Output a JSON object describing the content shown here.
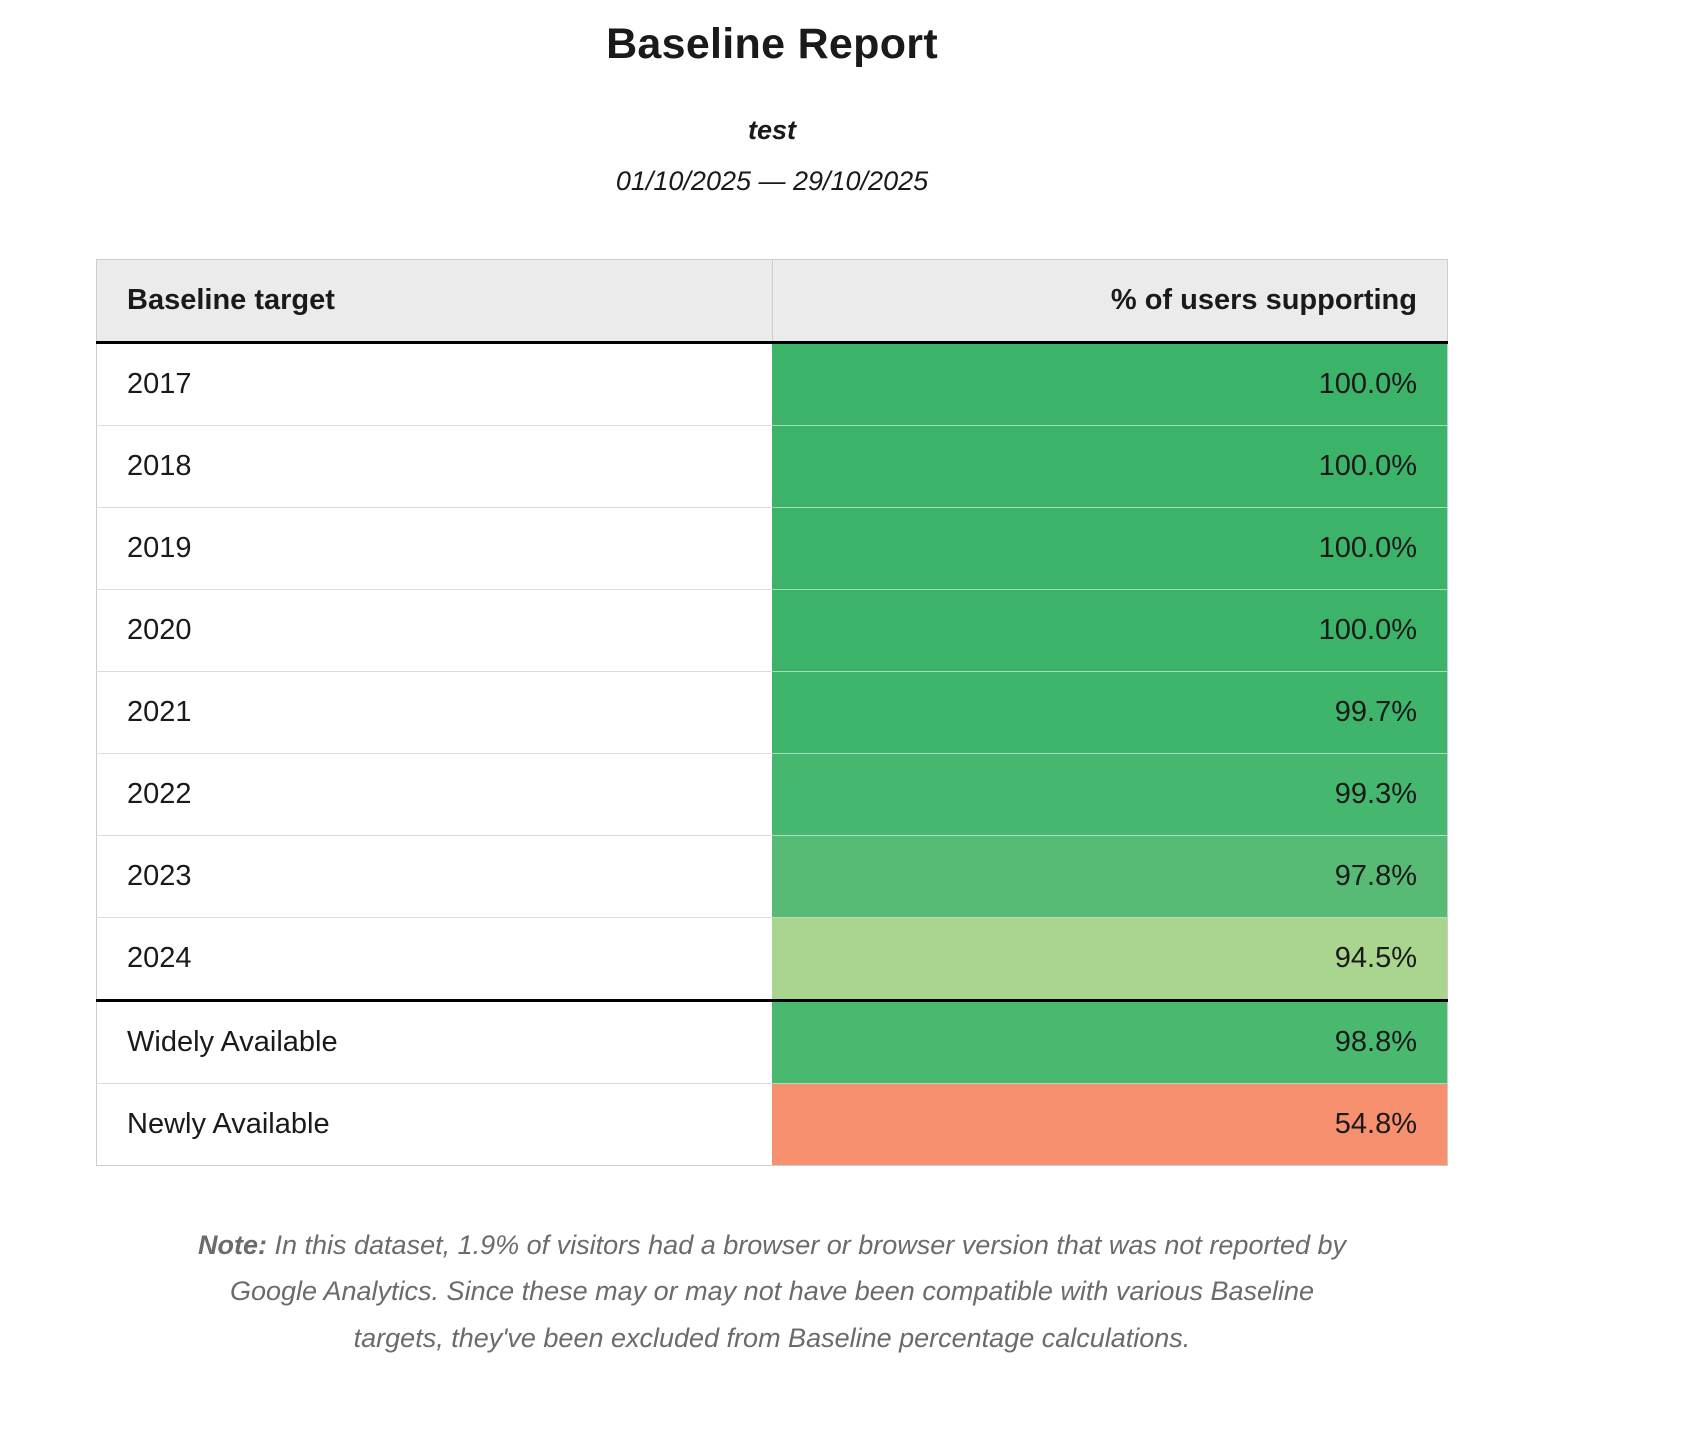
{
  "report": {
    "title": "Baseline Report",
    "subtitle": "test",
    "date_range": "01/10/2025 — 29/10/2025"
  },
  "table": {
    "header": {
      "target": "Baseline target",
      "support": "% of users supporting"
    },
    "rows": [
      {
        "label": "2017",
        "value": "100.0%",
        "color": "#3bb46a",
        "divider_above": false
      },
      {
        "label": "2018",
        "value": "100.0%",
        "color": "#3bb46a",
        "divider_above": false
      },
      {
        "label": "2019",
        "value": "100.0%",
        "color": "#3bb46a",
        "divider_above": false
      },
      {
        "label": "2020",
        "value": "100.0%",
        "color": "#3bb46a",
        "divider_above": false
      },
      {
        "label": "2021",
        "value": "99.7%",
        "color": "#3fb56c",
        "divider_above": false
      },
      {
        "label": "2022",
        "value": "99.3%",
        "color": "#45b76e",
        "divider_above": false
      },
      {
        "label": "2023",
        "value": "97.8%",
        "color": "#57bb76",
        "divider_above": false
      },
      {
        "label": "2024",
        "value": "94.5%",
        "color": "#a9d58e",
        "divider_above": false
      },
      {
        "label": "Widely Available",
        "value": "98.8%",
        "color": "#4ab970",
        "divider_above": true
      },
      {
        "label": "Newly Available",
        "value": "54.8%",
        "color": "#f7906e",
        "divider_above": false
      }
    ]
  },
  "note": {
    "label": "Note:",
    "text": "In this dataset, 1.9% of visitors had a browser or browser version that was not reported by Google Analytics. Since these may or may not have been compatible with various Baseline targets, they've been excluded from Baseline percentage calculations."
  },
  "colors": {
    "header_bg": "#ebebeb",
    "table_border": "#cccccc",
    "section_divider": "#000000",
    "note_text": "#6b6b6b"
  },
  "chart_data": {
    "type": "table",
    "title": "Baseline Report",
    "subtitle": "test",
    "date_range": "01/10/2025 — 29/10/2025",
    "columns": [
      "Baseline target",
      "% of users supporting"
    ],
    "rows": [
      [
        "2017",
        100.0
      ],
      [
        "2018",
        100.0
      ],
      [
        "2019",
        100.0
      ],
      [
        "2020",
        100.0
      ],
      [
        "2021",
        99.7
      ],
      [
        "2022",
        99.3
      ],
      [
        "2023",
        97.8
      ],
      [
        "2024",
        94.5
      ],
      [
        "Widely Available",
        98.8
      ],
      [
        "Newly Available",
        54.8
      ]
    ],
    "value_unit": "%",
    "note": "In this dataset, 1.9% of visitors had a browser or browser version that was not reported by Google Analytics. Since these may or may not have been compatible with various Baseline targets, they've been excluded from Baseline percentage calculations."
  }
}
